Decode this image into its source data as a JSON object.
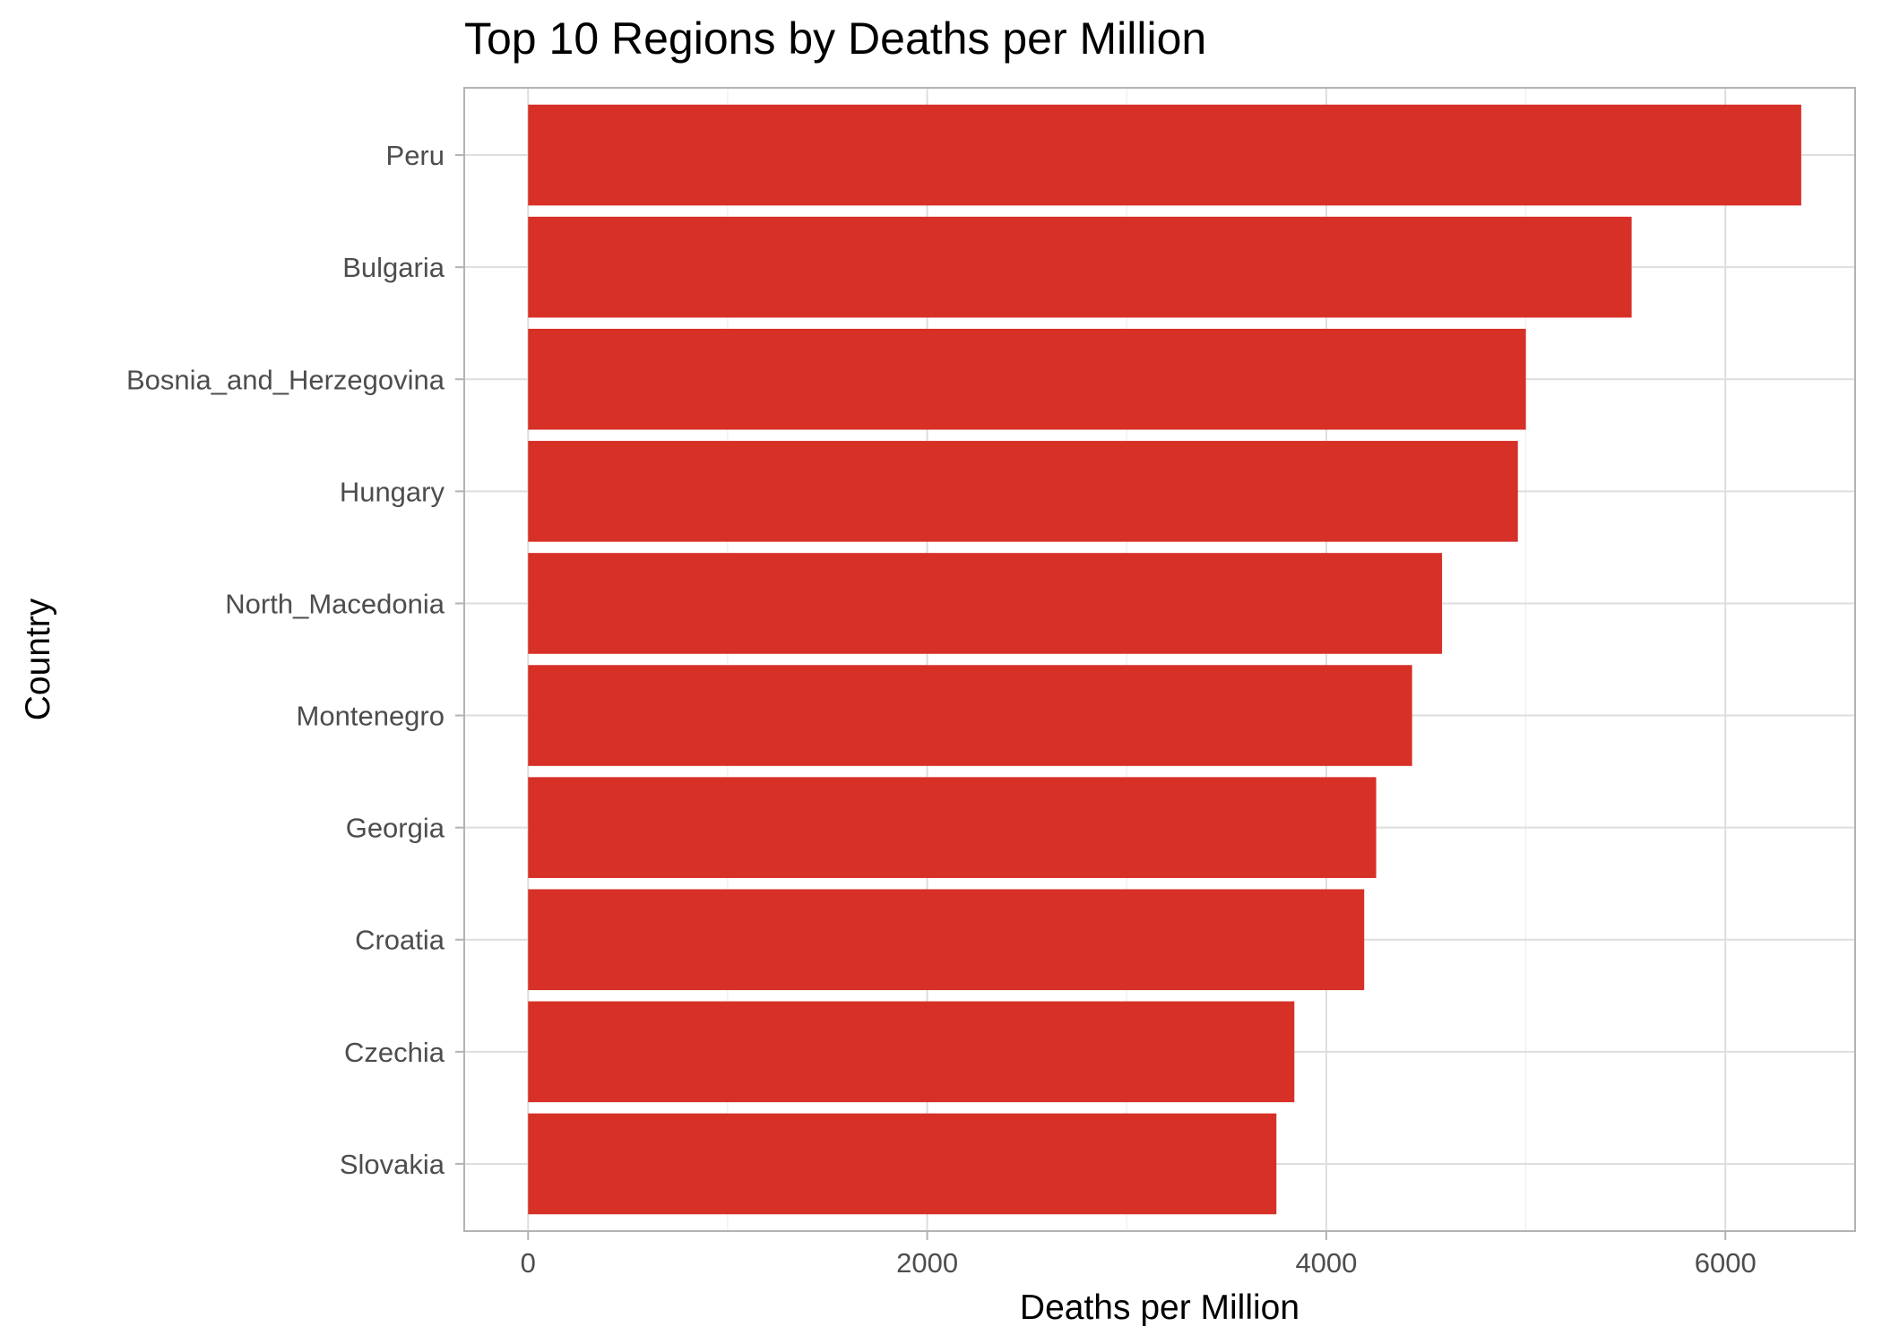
{
  "colors": {
    "bar": "#D73027",
    "background": "#FFFFFF",
    "grid_major": "#DEDEDE",
    "grid_minor": "#EEEEEE",
    "border": "#B3B3B3",
    "tick_text": "#4D4D4D",
    "title_text": "#000000"
  },
  "chart_data": {
    "type": "bar",
    "orientation": "horizontal",
    "title": "Top 10 Regions by Deaths per Million",
    "xlabel": "Deaths per Million",
    "ylabel": "Country",
    "xlim": [
      -320,
      6650
    ],
    "xticks": [
      0,
      2000,
      4000,
      6000
    ],
    "xtick_labels": [
      "0",
      "2000",
      "4000",
      "6000"
    ],
    "xminor": [
      1000,
      3000,
      5000
    ],
    "grid": true,
    "legend": "none",
    "categories": [
      "Peru",
      "Bulgaria",
      "Bosnia_and_Herzegovina",
      "Hungary",
      "North_Macedonia",
      "Montenegro",
      "Georgia",
      "Croatia",
      "Czechia",
      "Slovakia"
    ],
    "values": [
      6380,
      5530,
      5000,
      4960,
      4580,
      4430,
      4250,
      4190,
      3840,
      3750
    ]
  }
}
